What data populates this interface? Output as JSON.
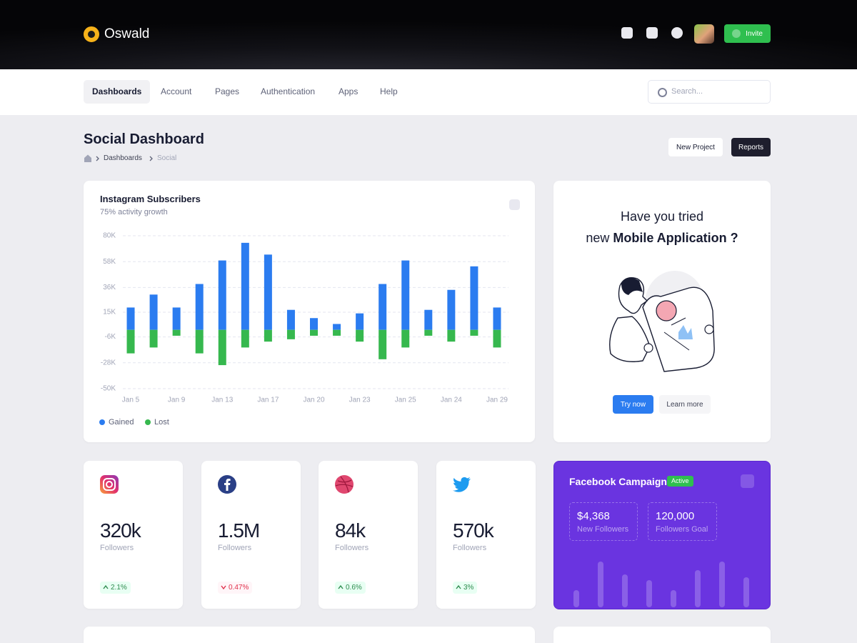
{
  "header": {
    "brand": "Oswald",
    "invite": "Invite"
  },
  "nav": {
    "items": [
      "Dashboards",
      "Account",
      "Pages",
      "Authentication",
      "Apps",
      "Help"
    ],
    "active": 0,
    "search_placeholder": "Search..."
  },
  "page": {
    "title": "Social Dashboard",
    "breadcrumb": [
      "Dashboards",
      "Social"
    ],
    "actions": [
      "New Project",
      "Reports"
    ]
  },
  "chart_data": {
    "type": "bar",
    "title": "Instagram Subscribers",
    "subtitle": "75% activity growth",
    "categories": [
      "Jan 5",
      null,
      "Jan 9",
      null,
      "Jan 13",
      null,
      "Jan 17",
      null,
      "Jan 20",
      null,
      "Jan 23",
      null,
      "Jan 25",
      null,
      "Jan 24",
      null,
      "Jan 29"
    ],
    "series": [
      {
        "name": "Gained",
        "color": "#2b7cf0",
        "values": [
          19000,
          30000,
          19000,
          39000,
          59000,
          74000,
          64000,
          17000,
          10000,
          5000,
          14000,
          39000,
          59000,
          17000,
          34000,
          54000,
          19000
        ]
      },
      {
        "name": "Lost",
        "color": "#36b84e",
        "values": [
          -20000,
          -15000,
          -5000,
          -20000,
          -30000,
          -15000,
          -10000,
          -8000,
          -5000,
          -5000,
          -10000,
          -25000,
          -15000,
          -5000,
          -10000,
          -5000,
          -15000
        ]
      }
    ],
    "ylim": [
      -50000,
      80000
    ],
    "yticks": [
      {
        "value": 80000,
        "label": "80K"
      },
      {
        "value": 58000,
        "label": "58K"
      },
      {
        "value": 36000,
        "label": "36K"
      },
      {
        "value": 15000,
        "label": "15K"
      },
      {
        "value": -6000,
        "label": "-6K"
      },
      {
        "value": -28000,
        "label": "-28K"
      },
      {
        "value": -50000,
        "label": "-50K"
      }
    ],
    "grid": true,
    "legend": "bottom-left"
  },
  "promo": {
    "line1": "Have you tried",
    "line2_prefix": "new",
    "line2_bold": "Mobile Application ?",
    "buttons": [
      "Try now",
      "Learn more"
    ]
  },
  "stats": [
    {
      "icon": "instagram",
      "value": "320k",
      "label": "Followers",
      "change": "2.1%",
      "trend": "up"
    },
    {
      "icon": "facebook",
      "value": "1.5M",
      "label": "Followers",
      "change": "0.47%",
      "trend": "down"
    },
    {
      "icon": "dribbble",
      "value": "84k",
      "label": "Followers",
      "change": "0.6%",
      "trend": "up"
    },
    {
      "icon": "twitter",
      "value": "570k",
      "label": "Followers",
      "change": "3%",
      "trend": "up"
    }
  ],
  "campaign": {
    "title": "Facebook Campaign",
    "status": "Active",
    "metrics": [
      {
        "value": "$4,368",
        "label": "New Followers"
      },
      {
        "value": "120,000",
        "label": "Followers Goal"
      }
    ]
  }
}
